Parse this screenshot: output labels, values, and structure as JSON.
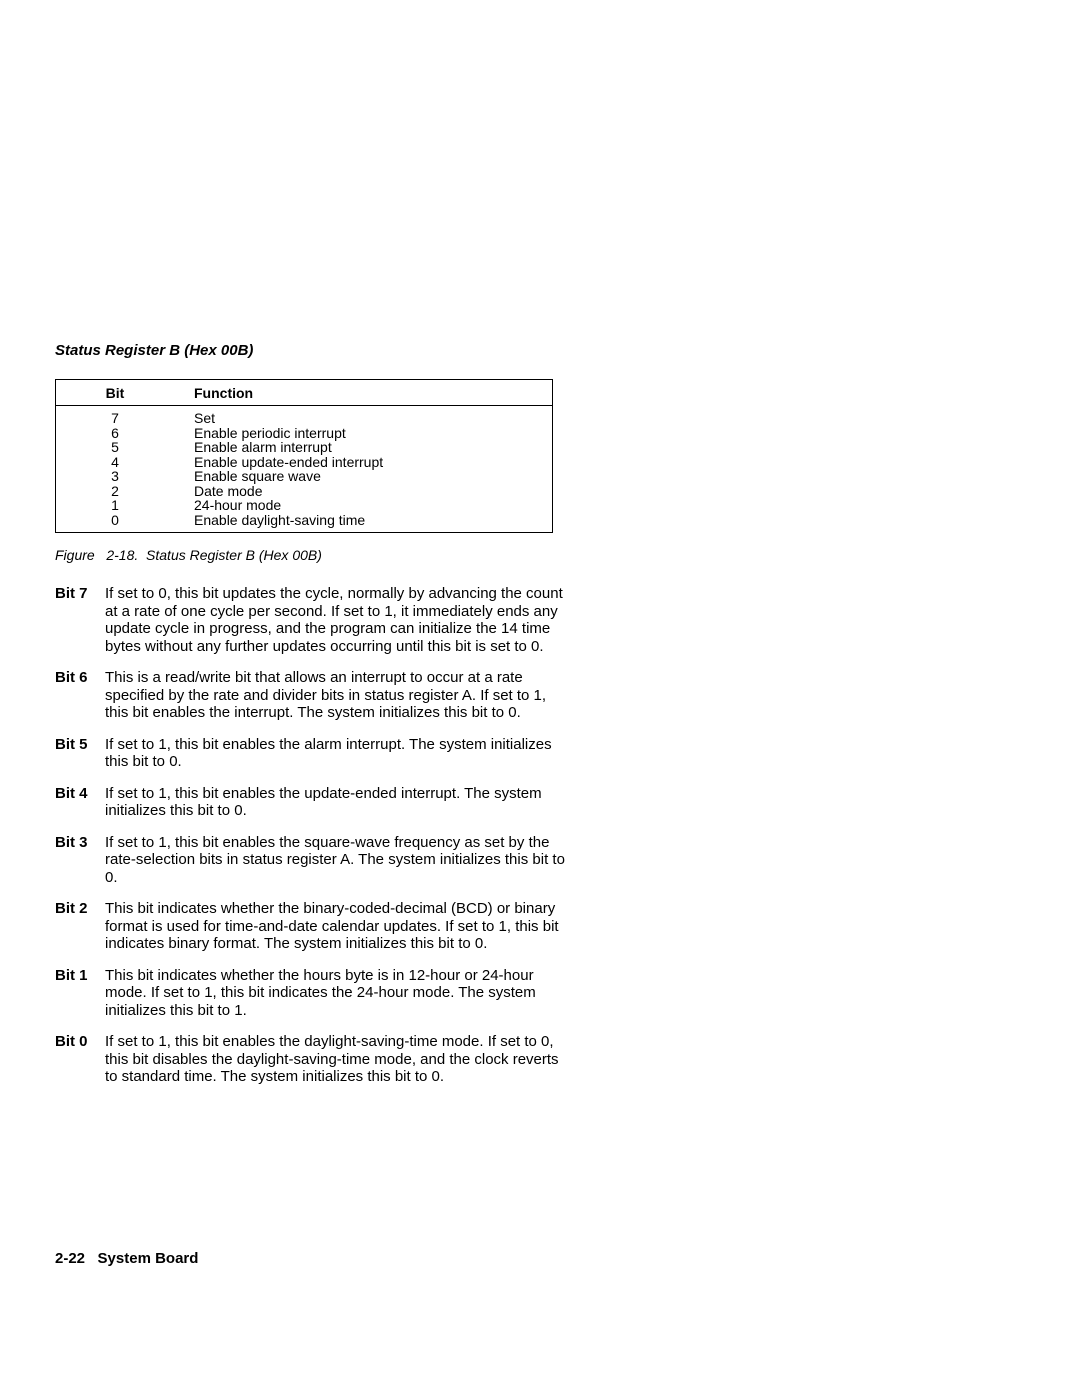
{
  "section_title": "Status Register B (Hex 00B)",
  "table": {
    "header": {
      "bit": "Bit",
      "function": "Function"
    },
    "rows": [
      {
        "bit": "7",
        "function": "Set"
      },
      {
        "bit": "6",
        "function": "Enable periodic interrupt"
      },
      {
        "bit": "5",
        "function": "Enable alarm interrupt"
      },
      {
        "bit": "4",
        "function": "Enable update-ended interrupt"
      },
      {
        "bit": "3",
        "function": "Enable square wave"
      },
      {
        "bit": "2",
        "function": "Date mode"
      },
      {
        "bit": "1",
        "function": "24-hour mode"
      },
      {
        "bit": "0",
        "function": "Enable daylight-saving time"
      }
    ]
  },
  "figure_caption": "Figure   2-18.  Status Register B (Hex 00B)",
  "definitions": [
    {
      "label": "Bit 7",
      "text": "If set to 0, this bit updates the cycle, normally by advancing the count at a rate of one cycle per second.  If set to 1, it immediately ends any update cycle in progress, and the program can initialize the 14 time bytes without any further updates occurring until this bit is set to  0."
    },
    {
      "label": "Bit 6",
      "text": "This is a read/write bit that allows an interrupt to occur at a rate specified by the rate and divider bits in status register A.  If set to 1, this bit enables the interrupt.  The system initializes this bit to 0."
    },
    {
      "label": "Bit 5",
      "text": "If set to 1, this bit enables the alarm interrupt.  The system initializes this bit to 0."
    },
    {
      "label": "Bit 4",
      "text": "If set to 1, this bit enables the update-ended interrupt.  The system initializes this bit to 0."
    },
    {
      "label": "Bit 3",
      "text": "If set to 1, this bit enables the square-wave frequency as set by the rate-selection bits in status register A.  The system initializes this bit to 0."
    },
    {
      "label": "Bit 2",
      "text": "This bit indicates whether the binary-coded-decimal (BCD) or binary format is used for time-and-date calendar updates.  If set to 1, this bit indicates binary format.  The system initializes this bit to  0."
    },
    {
      "label": "Bit 1",
      "text": "This bit indicates whether the hours byte is in 12-hour or 24-hour mode.  If set to 1, this bit indicates the 24-hour mode.  The system initializes this bit to 1."
    },
    {
      "label": "Bit 0",
      "text": "If set to 1, this bit enables the daylight-saving-time mode.  If set to 0, this bit disables the daylight-saving-time mode, and the clock reverts to standard time.  The system initializes this bit to 0."
    }
  ],
  "footer": {
    "page": "2-22",
    "title": "System Board"
  }
}
